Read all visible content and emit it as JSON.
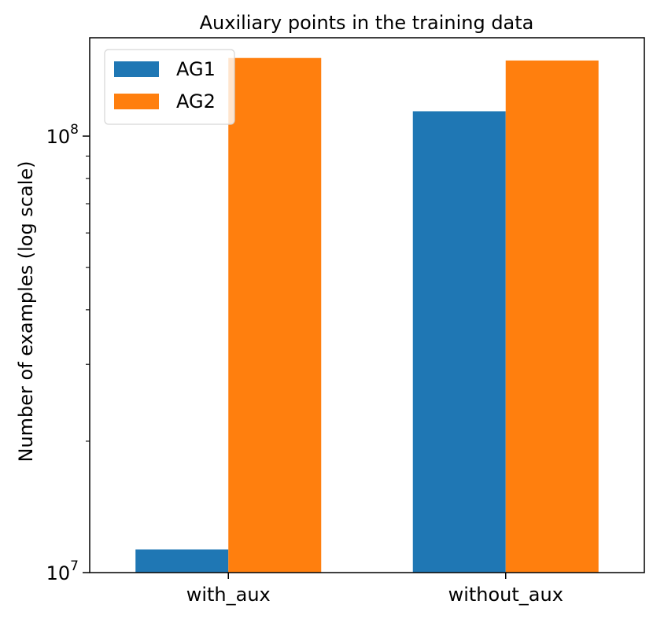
{
  "chart_data": {
    "type": "bar",
    "title": "Auxiliary points in the training data",
    "xlabel": "",
    "ylabel": "Number of examples (log scale)",
    "yscale": "log",
    "ylim": [
      10000000,
      168000000
    ],
    "ytick_labels": [
      {
        "value": 10000000,
        "base": "10",
        "exp": "7"
      },
      {
        "value": 100000000,
        "base": "10",
        "exp": "8"
      }
    ],
    "categories": [
      "with_aux",
      "without_aux"
    ],
    "series": [
      {
        "name": "AG1",
        "color": "#1f77b4",
        "values": [
          11300000,
          114000000
        ]
      },
      {
        "name": "AG2",
        "color": "#ff7f0e",
        "values": [
          151000000,
          149000000
        ]
      }
    ],
    "legend_position": "top-left",
    "grid": false
  }
}
